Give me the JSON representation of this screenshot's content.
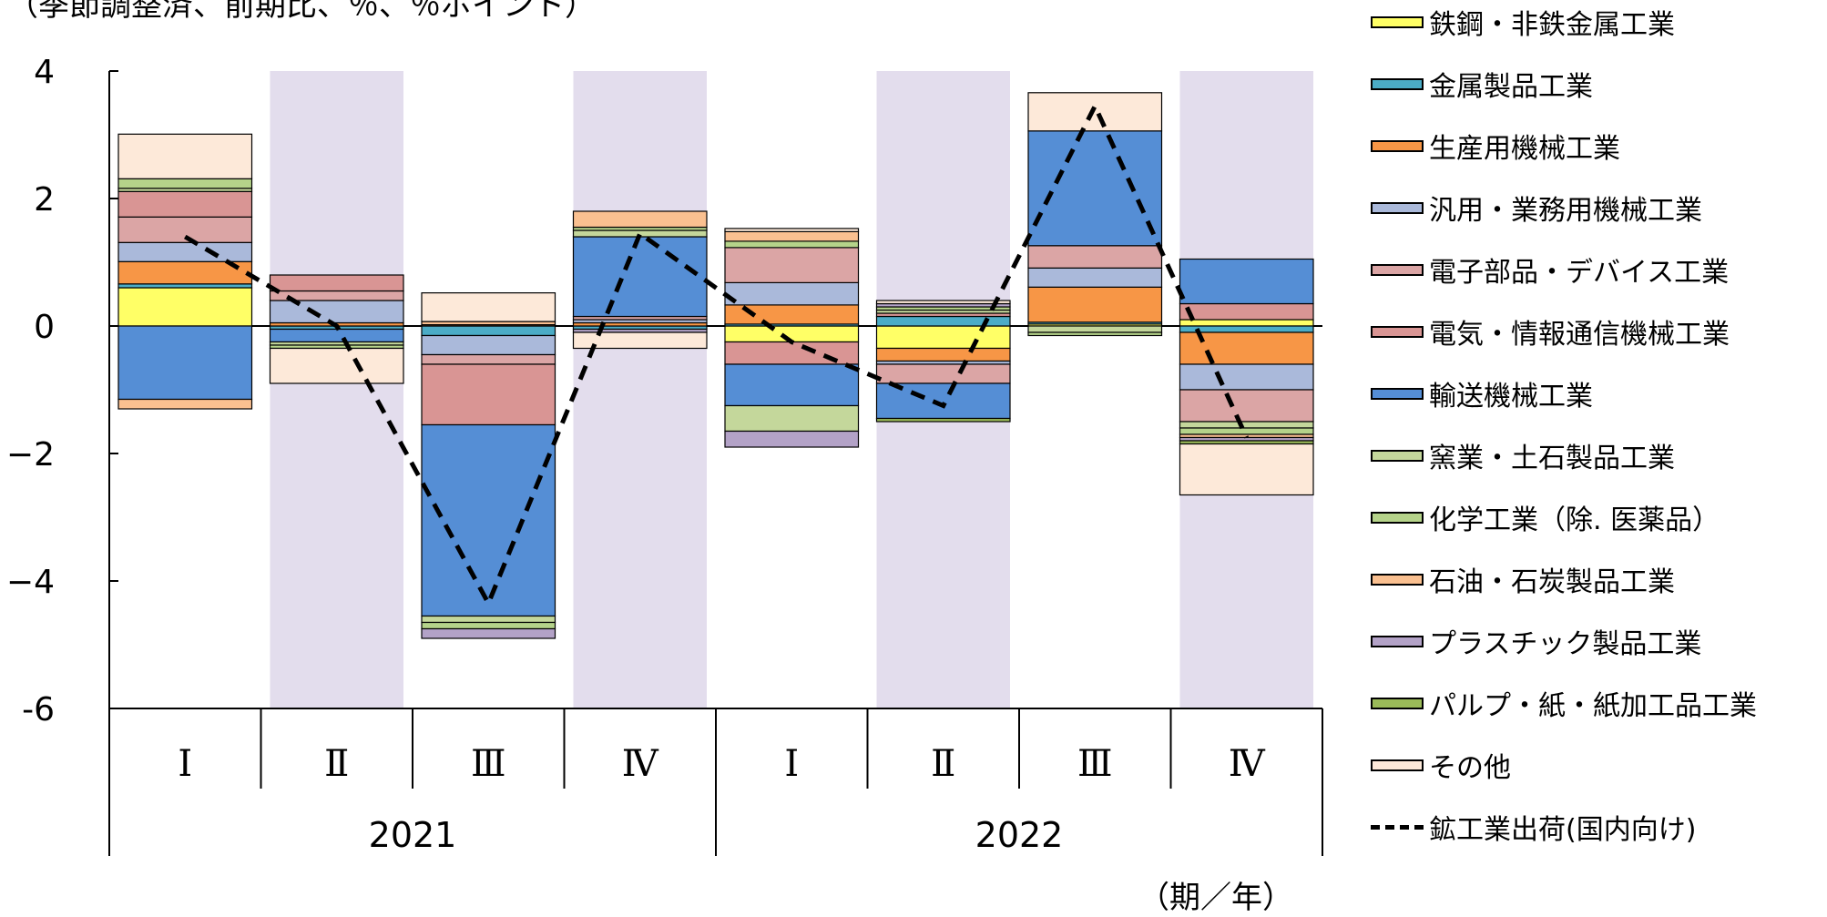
{
  "header": {
    "unit_note": "（季節調整済、前期比、％、％ポイント）",
    "period_unit": "（期／年）"
  },
  "colors": {
    "shade": "#e3dded",
    "axis": "#000000"
  },
  "chart_data": {
    "type": "bar",
    "stacked": true,
    "ylim": [
      -6,
      4
    ],
    "yticks": [
      4,
      2,
      0,
      -2,
      -4,
      -6
    ],
    "ytick_labels": [
      "4",
      "2",
      "0",
      "−2",
      "−4",
      "-6"
    ],
    "categories": [
      "Ⅰ",
      "Ⅱ",
      "Ⅲ",
      "Ⅳ",
      "Ⅰ",
      "Ⅱ",
      "Ⅲ",
      "Ⅳ"
    ],
    "years": [
      {
        "label": "2021",
        "span": 4
      },
      {
        "label": "2022",
        "span": 4
      }
    ],
    "shaded_categories": [
      1,
      3,
      5,
      7
    ],
    "legend_position": "right",
    "series": [
      {
        "name": "鉄鋼・非鉄金属工業",
        "color": "#ffff66",
        "values": [
          0.6,
          0.0,
          0.0,
          0.0,
          -0.25,
          -0.35,
          0.03,
          0.1
        ]
      },
      {
        "name": "金属製品工業",
        "color": "#4bacc6",
        "values": [
          0.06,
          -0.05,
          -0.15,
          -0.05,
          0.03,
          0.15,
          0.03,
          -0.1
        ]
      },
      {
        "name": "生産用機械工業",
        "color": "#f79646",
        "values": [
          0.35,
          0.05,
          0.02,
          0.05,
          0.3,
          -0.2,
          0.55,
          -0.5
        ]
      },
      {
        "name": "汎用・業務用機械工業",
        "color": "#aab9da",
        "values": [
          0.3,
          0.35,
          -0.3,
          0.05,
          0.35,
          -0.05,
          0.3,
          -0.4
        ]
      },
      {
        "name": "電子部品・デバイス工業",
        "color": "#dba5a5",
        "values": [
          0.4,
          0.15,
          -0.15,
          0.05,
          0.55,
          -0.3,
          0.35,
          -0.5
        ]
      },
      {
        "name": "電気・情報通信機械工業",
        "color": "#d99594",
        "values": [
          0.4,
          0.25,
          -0.95,
          0.0,
          -0.35,
          0.05,
          0.0,
          0.25
        ]
      },
      {
        "name": "輸送機械工業",
        "color": "#558ed5",
        "values": [
          -1.15,
          -0.2,
          -3.0,
          1.25,
          -0.65,
          -0.55,
          1.8,
          0.7
        ]
      },
      {
        "name": "窯業・土石製品工業",
        "color": "#c4d79b",
        "values": [
          0.05,
          -0.05,
          -0.1,
          0.1,
          -0.4,
          0.05,
          -0.1,
          -0.1
        ]
      },
      {
        "name": "化学工業（除. 医薬品）",
        "color": "#b5d38a",
        "values": [
          0.15,
          -0.05,
          -0.1,
          0.05,
          0.1,
          0.05,
          -0.05,
          -0.1
        ]
      },
      {
        "name": "石油・石炭製品工業",
        "color": "#fac090",
        "values": [
          -0.15,
          0.0,
          0.05,
          0.25,
          0.15,
          0.0,
          0.0,
          -0.05
        ]
      },
      {
        "name": "プラスチック製品工業",
        "color": "#b3a2c7",
        "values": [
          0.0,
          0.0,
          -0.15,
          -0.05,
          -0.25,
          0.05,
          0.0,
          -0.05
        ]
      },
      {
        "name": "パルプ・紙・紙加工品工業",
        "color": "#9bbb59",
        "values": [
          0.0,
          0.0,
          0.0,
          0.0,
          0.0,
          -0.05,
          0.0,
          -0.05
        ]
      },
      {
        "name": "その他",
        "color": "#fde9d9",
        "values": [
          0.7,
          -0.55,
          0.45,
          -0.25,
          0.05,
          0.05,
          0.6,
          -0.8
        ]
      }
    ],
    "line_series": {
      "name": "鉱工業出荷(国内向け)",
      "values": [
        1.4,
        0.0,
        -4.35,
        1.45,
        -0.25,
        -1.25,
        3.45,
        -1.75
      ]
    }
  }
}
